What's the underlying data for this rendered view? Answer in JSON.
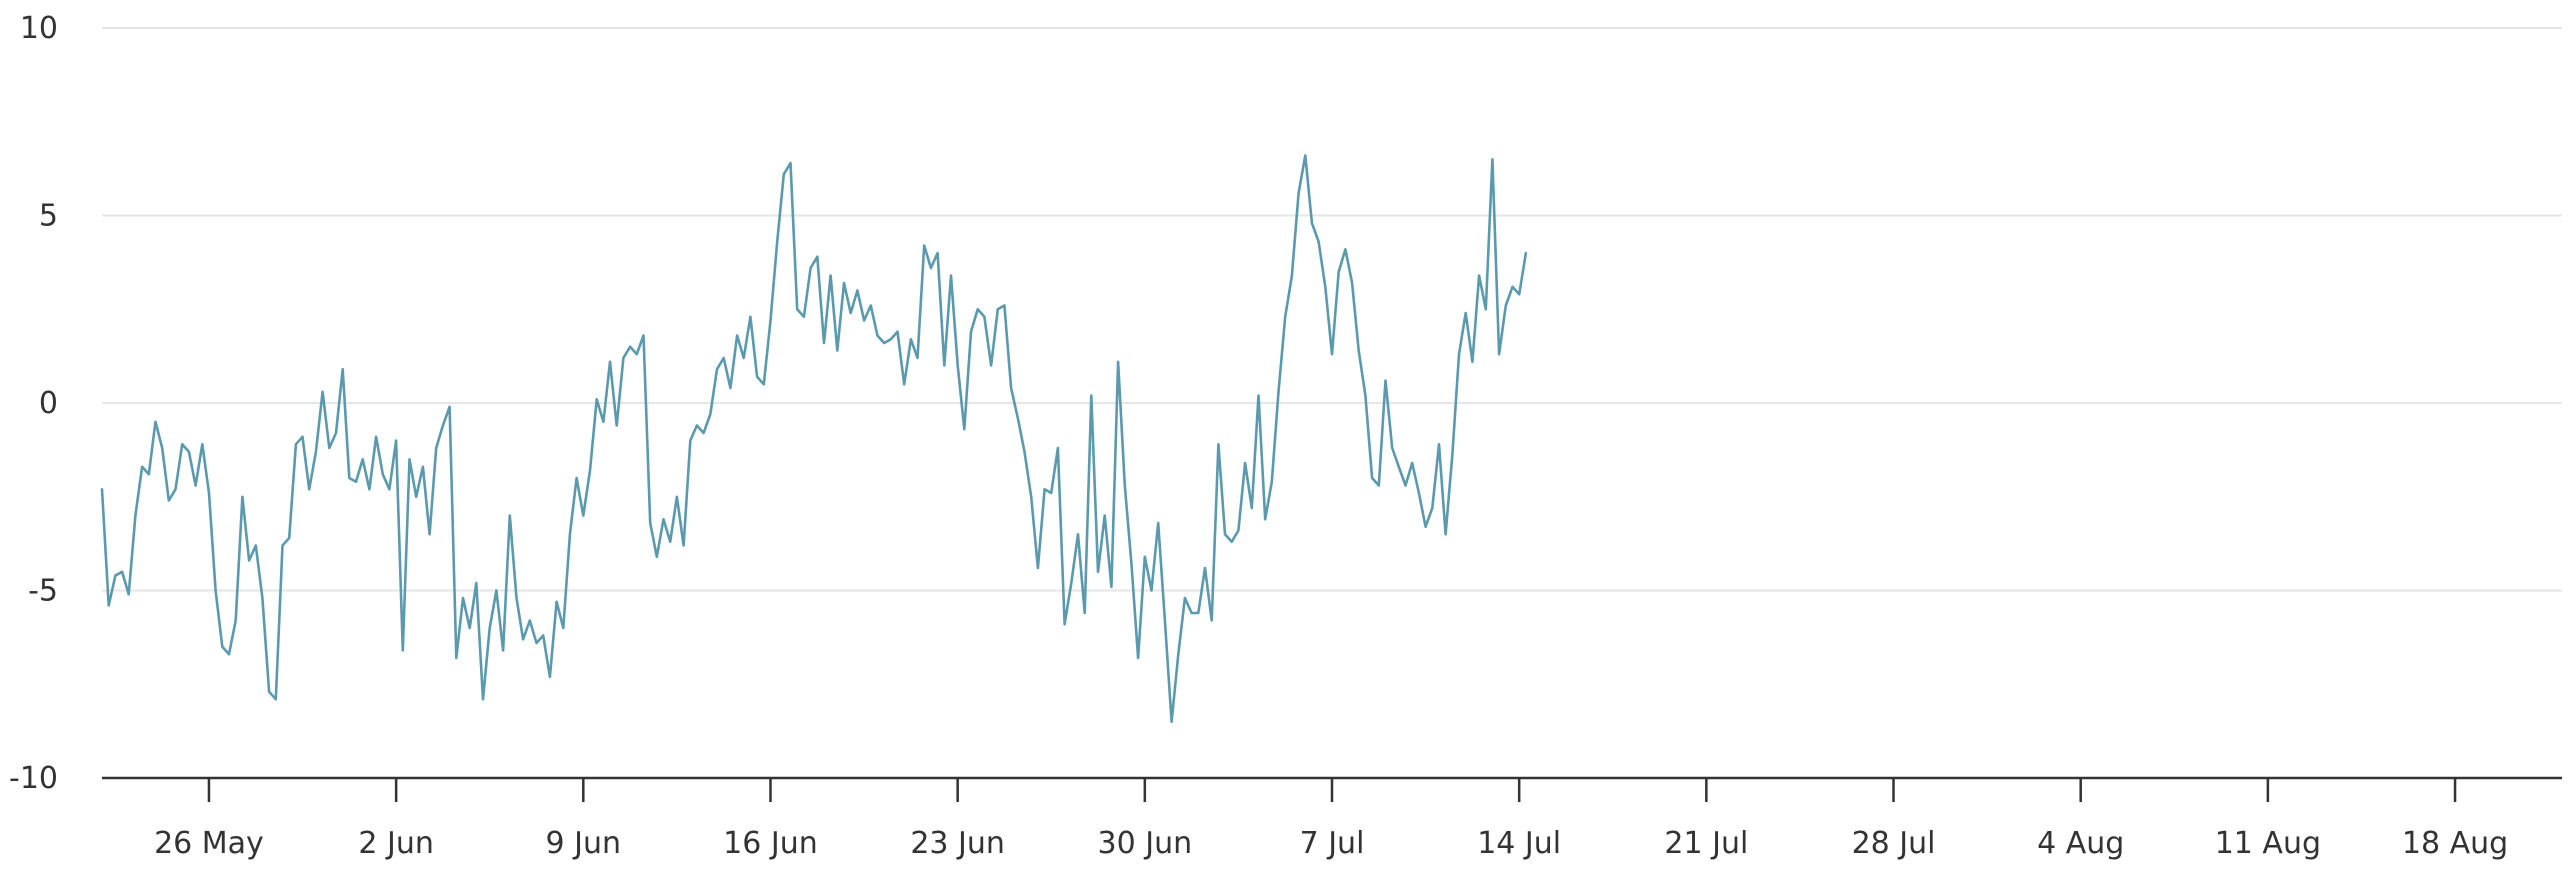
{
  "chart_data": {
    "type": "line",
    "title": "",
    "xlabel": "",
    "ylabel": "",
    "ylim": [
      -10,
      10
    ],
    "xlim": [
      "2024-05-21",
      "2024-08-21"
    ],
    "grid": true,
    "yticks": [
      {
        "value": 10,
        "label": "10"
      },
      {
        "value": 5,
        "label": "5"
      },
      {
        "value": 0,
        "label": "0"
      },
      {
        "value": -5,
        "label": "-5"
      },
      {
        "value": -10,
        "label": "-10"
      }
    ],
    "xticks": [
      {
        "date": "2024-05-25",
        "label": "26 May"
      },
      {
        "date": "2024-06-01",
        "label": "2 Jun"
      },
      {
        "date": "2024-06-08",
        "label": "9 Jun"
      },
      {
        "date": "2024-06-15",
        "label": "16 Jun"
      },
      {
        "date": "2024-06-22",
        "label": "23 Jun"
      },
      {
        "date": "2024-06-29",
        "label": "30 Jun"
      },
      {
        "date": "2024-07-06",
        "label": "7 Jul"
      },
      {
        "date": "2024-07-13",
        "label": "14 Jul"
      },
      {
        "date": "2024-07-20",
        "label": "21 Jul"
      },
      {
        "date": "2024-07-27",
        "label": "28 Jul"
      },
      {
        "date": "2024-08-03",
        "label": "4 Aug"
      },
      {
        "date": "2024-08-10",
        "label": "11 Aug"
      },
      {
        "date": "2024-08-17",
        "label": "18 Aug"
      }
    ],
    "series": [
      {
        "color": "#5b9aae",
        "points": [
          [
            "2024-05-21T00:00",
            -2.3
          ],
          [
            "2024-05-21T06:00",
            -5.4
          ],
          [
            "2024-05-21T12:00",
            -4.6
          ],
          [
            "2024-05-21T18:00",
            -4.5
          ],
          [
            "2024-05-22T00:00",
            -5.1
          ],
          [
            "2024-05-22T06:00",
            -3.0
          ],
          [
            "2024-05-22T12:00",
            -1.7
          ],
          [
            "2024-05-22T18:00",
            -1.9
          ],
          [
            "2024-05-23T00:00",
            -0.5
          ],
          [
            "2024-05-23T06:00",
            -1.2
          ],
          [
            "2024-05-23T12:00",
            -2.6
          ],
          [
            "2024-05-23T18:00",
            -2.3
          ],
          [
            "2024-05-24T00:00",
            -1.1
          ],
          [
            "2024-05-24T06:00",
            -1.3
          ],
          [
            "2024-05-24T12:00",
            -2.2
          ],
          [
            "2024-05-24T18:00",
            -1.1
          ],
          [
            "2024-05-25T00:00",
            -2.4
          ],
          [
            "2024-05-25T06:00",
            -5.0
          ],
          [
            "2024-05-25T12:00",
            -6.5
          ],
          [
            "2024-05-25T18:00",
            -6.7
          ],
          [
            "2024-05-26T00:00",
            -5.8
          ],
          [
            "2024-05-26T06:00",
            -2.5
          ],
          [
            "2024-05-26T12:00",
            -4.2
          ],
          [
            "2024-05-26T18:00",
            -3.8
          ],
          [
            "2024-05-27T00:00",
            -5.2
          ],
          [
            "2024-05-27T06:00",
            -7.7
          ],
          [
            "2024-05-27T12:00",
            -7.9
          ],
          [
            "2024-05-27T18:00",
            -3.8
          ],
          [
            "2024-05-28T00:00",
            -3.6
          ],
          [
            "2024-05-28T06:00",
            -1.1
          ],
          [
            "2024-05-28T12:00",
            -0.9
          ],
          [
            "2024-05-28T18:00",
            -2.3
          ],
          [
            "2024-05-29T00:00",
            -1.3
          ],
          [
            "2024-05-29T06:00",
            0.3
          ],
          [
            "2024-05-29T12:00",
            -1.2
          ],
          [
            "2024-05-29T18:00",
            -0.8
          ],
          [
            "2024-05-30T00:00",
            0.9
          ],
          [
            "2024-05-30T06:00",
            -2.0
          ],
          [
            "2024-05-30T12:00",
            -2.1
          ],
          [
            "2024-05-30T18:00",
            -1.5
          ],
          [
            "2024-05-31T00:00",
            -2.3
          ],
          [
            "2024-05-31T06:00",
            -0.9
          ],
          [
            "2024-05-31T12:00",
            -1.9
          ],
          [
            "2024-05-31T18:00",
            -2.3
          ],
          [
            "2024-06-01T00:00",
            -1.0
          ],
          [
            "2024-06-01T06:00",
            -6.6
          ],
          [
            "2024-06-01T12:00",
            -1.5
          ],
          [
            "2024-06-01T18:00",
            -2.5
          ],
          [
            "2024-06-02T00:00",
            -1.7
          ],
          [
            "2024-06-02T06:00",
            -3.5
          ],
          [
            "2024-06-02T12:00",
            -1.2
          ],
          [
            "2024-06-02T18:00",
            -0.6
          ],
          [
            "2024-06-03T00:00",
            -0.1
          ],
          [
            "2024-06-03T06:00",
            -6.8
          ],
          [
            "2024-06-03T12:00",
            -5.2
          ],
          [
            "2024-06-03T18:00",
            -6.0
          ],
          [
            "2024-06-04T00:00",
            -4.8
          ],
          [
            "2024-06-04T06:00",
            -7.9
          ],
          [
            "2024-06-04T12:00",
            -6.0
          ],
          [
            "2024-06-04T18:00",
            -5.0
          ],
          [
            "2024-06-05T00:00",
            -6.6
          ],
          [
            "2024-06-05T06:00",
            -3.0
          ],
          [
            "2024-06-05T12:00",
            -5.2
          ],
          [
            "2024-06-05T18:00",
            -6.3
          ],
          [
            "2024-06-06T00:00",
            -5.8
          ],
          [
            "2024-06-06T06:00",
            -6.4
          ],
          [
            "2024-06-06T12:00",
            -6.2
          ],
          [
            "2024-06-06T18:00",
            -7.3
          ],
          [
            "2024-06-07T00:00",
            -5.3
          ],
          [
            "2024-06-07T06:00",
            -6.0
          ],
          [
            "2024-06-07T12:00",
            -3.5
          ],
          [
            "2024-06-07T18:00",
            -2.0
          ],
          [
            "2024-06-08T00:00",
            -3.0
          ],
          [
            "2024-06-08T06:00",
            -1.8
          ],
          [
            "2024-06-08T12:00",
            0.1
          ],
          [
            "2024-06-08T18:00",
            -0.5
          ],
          [
            "2024-06-09T00:00",
            1.1
          ],
          [
            "2024-06-09T06:00",
            -0.6
          ],
          [
            "2024-06-09T12:00",
            1.2
          ],
          [
            "2024-06-09T18:00",
            1.5
          ],
          [
            "2024-06-10T00:00",
            1.3
          ],
          [
            "2024-06-10T06:00",
            1.8
          ],
          [
            "2024-06-10T12:00",
            -3.2
          ],
          [
            "2024-06-10T18:00",
            -4.1
          ],
          [
            "2024-06-11T00:00",
            -3.1
          ],
          [
            "2024-06-11T06:00",
            -3.7
          ],
          [
            "2024-06-11T12:00",
            -2.5
          ],
          [
            "2024-06-11T18:00",
            -3.8
          ],
          [
            "2024-06-12T00:00",
            -1.0
          ],
          [
            "2024-06-12T06:00",
            -0.6
          ],
          [
            "2024-06-12T12:00",
            -0.8
          ],
          [
            "2024-06-12T18:00",
            -0.3
          ],
          [
            "2024-06-13T00:00",
            0.9
          ],
          [
            "2024-06-13T06:00",
            1.2
          ],
          [
            "2024-06-13T12:00",
            0.4
          ],
          [
            "2024-06-13T18:00",
            1.8
          ],
          [
            "2024-06-14T00:00",
            1.2
          ],
          [
            "2024-06-14T06:00",
            2.3
          ],
          [
            "2024-06-14T12:00",
            0.7
          ],
          [
            "2024-06-14T18:00",
            0.5
          ],
          [
            "2024-06-15T00:00",
            2.2
          ],
          [
            "2024-06-15T06:00",
            4.3
          ],
          [
            "2024-06-15T12:00",
            6.1
          ],
          [
            "2024-06-15T18:00",
            6.4
          ],
          [
            "2024-06-16T00:00",
            2.5
          ],
          [
            "2024-06-16T06:00",
            2.3
          ],
          [
            "2024-06-16T12:00",
            3.6
          ],
          [
            "2024-06-16T18:00",
            3.9
          ],
          [
            "2024-06-17T00:00",
            1.6
          ],
          [
            "2024-06-17T06:00",
            3.4
          ],
          [
            "2024-06-17T12:00",
            1.4
          ],
          [
            "2024-06-17T18:00",
            3.2
          ],
          [
            "2024-06-18T00:00",
            2.4
          ],
          [
            "2024-06-18T06:00",
            3.0
          ],
          [
            "2024-06-18T12:00",
            2.2
          ],
          [
            "2024-06-18T18:00",
            2.6
          ],
          [
            "2024-06-19T00:00",
            1.8
          ],
          [
            "2024-06-19T06:00",
            1.6
          ],
          [
            "2024-06-19T12:00",
            1.7
          ],
          [
            "2024-06-19T18:00",
            1.9
          ],
          [
            "2024-06-20T00:00",
            0.5
          ],
          [
            "2024-06-20T06:00",
            1.7
          ],
          [
            "2024-06-20T12:00",
            1.2
          ],
          [
            "2024-06-20T18:00",
            4.2
          ],
          [
            "2024-06-21T00:00",
            3.6
          ],
          [
            "2024-06-21T06:00",
            4.0
          ],
          [
            "2024-06-21T12:00",
            1.0
          ],
          [
            "2024-06-21T18:00",
            3.4
          ],
          [
            "2024-06-22T00:00",
            1.0
          ],
          [
            "2024-06-22T06:00",
            -0.7
          ],
          [
            "2024-06-22T12:00",
            1.9
          ],
          [
            "2024-06-22T18:00",
            2.5
          ],
          [
            "2024-06-23T00:00",
            2.3
          ],
          [
            "2024-06-23T06:00",
            1.0
          ],
          [
            "2024-06-23T12:00",
            2.5
          ],
          [
            "2024-06-23T18:00",
            2.6
          ],
          [
            "2024-06-24T00:00",
            0.4
          ],
          [
            "2024-06-24T06:00",
            -0.4
          ],
          [
            "2024-06-24T12:00",
            -1.3
          ],
          [
            "2024-06-24T18:00",
            -2.5
          ],
          [
            "2024-06-25T00:00",
            -4.4
          ],
          [
            "2024-06-25T06:00",
            -2.3
          ],
          [
            "2024-06-25T12:00",
            -2.4
          ],
          [
            "2024-06-25T18:00",
            -1.2
          ],
          [
            "2024-06-26T00:00",
            -5.9
          ],
          [
            "2024-06-26T06:00",
            -4.8
          ],
          [
            "2024-06-26T12:00",
            -3.5
          ],
          [
            "2024-06-26T18:00",
            -5.6
          ],
          [
            "2024-06-27T00:00",
            0.2
          ],
          [
            "2024-06-27T06:00",
            -4.5
          ],
          [
            "2024-06-27T12:00",
            -3.0
          ],
          [
            "2024-06-27T18:00",
            -4.9
          ],
          [
            "2024-06-28T00:00",
            1.1
          ],
          [
            "2024-06-28T06:00",
            -2.2
          ],
          [
            "2024-06-28T12:00",
            -4.3
          ],
          [
            "2024-06-28T18:00",
            -6.8
          ],
          [
            "2024-06-29T00:00",
            -4.1
          ],
          [
            "2024-06-29T06:00",
            -5.0
          ],
          [
            "2024-06-29T12:00",
            -3.2
          ],
          [
            "2024-06-29T18:00",
            -5.8
          ],
          [
            "2024-06-30T00:00",
            -8.5
          ],
          [
            "2024-06-30T06:00",
            -6.7
          ],
          [
            "2024-06-30T12:00",
            -5.2
          ],
          [
            "2024-06-30T18:00",
            -5.6
          ],
          [
            "2024-07-01T00:00",
            -5.6
          ],
          [
            "2024-07-01T06:00",
            -4.4
          ],
          [
            "2024-07-01T12:00",
            -5.8
          ],
          [
            "2024-07-01T18:00",
            -1.1
          ],
          [
            "2024-07-02T00:00",
            -3.5
          ],
          [
            "2024-07-02T06:00",
            -3.7
          ],
          [
            "2024-07-02T12:00",
            -3.4
          ],
          [
            "2024-07-02T18:00",
            -1.6
          ],
          [
            "2024-07-03T00:00",
            -2.8
          ],
          [
            "2024-07-03T06:00",
            0.2
          ],
          [
            "2024-07-03T12:00",
            -3.1
          ],
          [
            "2024-07-03T18:00",
            -2.1
          ],
          [
            "2024-07-04T00:00",
            0.3
          ],
          [
            "2024-07-04T06:00",
            2.3
          ],
          [
            "2024-07-04T12:00",
            3.4
          ],
          [
            "2024-07-04T18:00",
            5.6
          ],
          [
            "2024-07-05T00:00",
            6.6
          ],
          [
            "2024-07-05T06:00",
            4.8
          ],
          [
            "2024-07-05T12:00",
            4.3
          ],
          [
            "2024-07-05T18:00",
            3.1
          ],
          [
            "2024-07-06T00:00",
            1.3
          ],
          [
            "2024-07-06T06:00",
            3.5
          ],
          [
            "2024-07-06T12:00",
            4.1
          ],
          [
            "2024-07-06T18:00",
            3.2
          ],
          [
            "2024-07-07T00:00",
            1.4
          ],
          [
            "2024-07-07T06:00",
            0.2
          ],
          [
            "2024-07-07T12:00",
            -2.0
          ],
          [
            "2024-07-07T18:00",
            -2.2
          ],
          [
            "2024-07-08T00:00",
            0.6
          ],
          [
            "2024-07-08T06:00",
            -1.2
          ],
          [
            "2024-07-08T12:00",
            -1.7
          ],
          [
            "2024-07-08T18:00",
            -2.2
          ],
          [
            "2024-07-09T00:00",
            -1.6
          ],
          [
            "2024-07-09T06:00",
            -2.4
          ],
          [
            "2024-07-09T12:00",
            -3.3
          ],
          [
            "2024-07-09T18:00",
            -2.8
          ],
          [
            "2024-07-10T00:00",
            -1.1
          ],
          [
            "2024-07-10T06:00",
            -3.5
          ],
          [
            "2024-07-10T12:00",
            -1.4
          ],
          [
            "2024-07-10T18:00",
            1.3
          ],
          [
            "2024-07-11T00:00",
            2.4
          ],
          [
            "2024-07-11T06:00",
            1.1
          ],
          [
            "2024-07-11T12:00",
            3.4
          ],
          [
            "2024-07-11T18:00",
            2.5
          ],
          [
            "2024-07-12T00:00",
            6.5
          ],
          [
            "2024-07-12T06:00",
            1.3
          ],
          [
            "2024-07-12T12:00",
            2.6
          ],
          [
            "2024-07-12T18:00",
            3.1
          ],
          [
            "2024-07-13T00:00",
            2.9
          ],
          [
            "2024-07-13T06:00",
            4.0
          ]
        ]
      }
    ]
  }
}
